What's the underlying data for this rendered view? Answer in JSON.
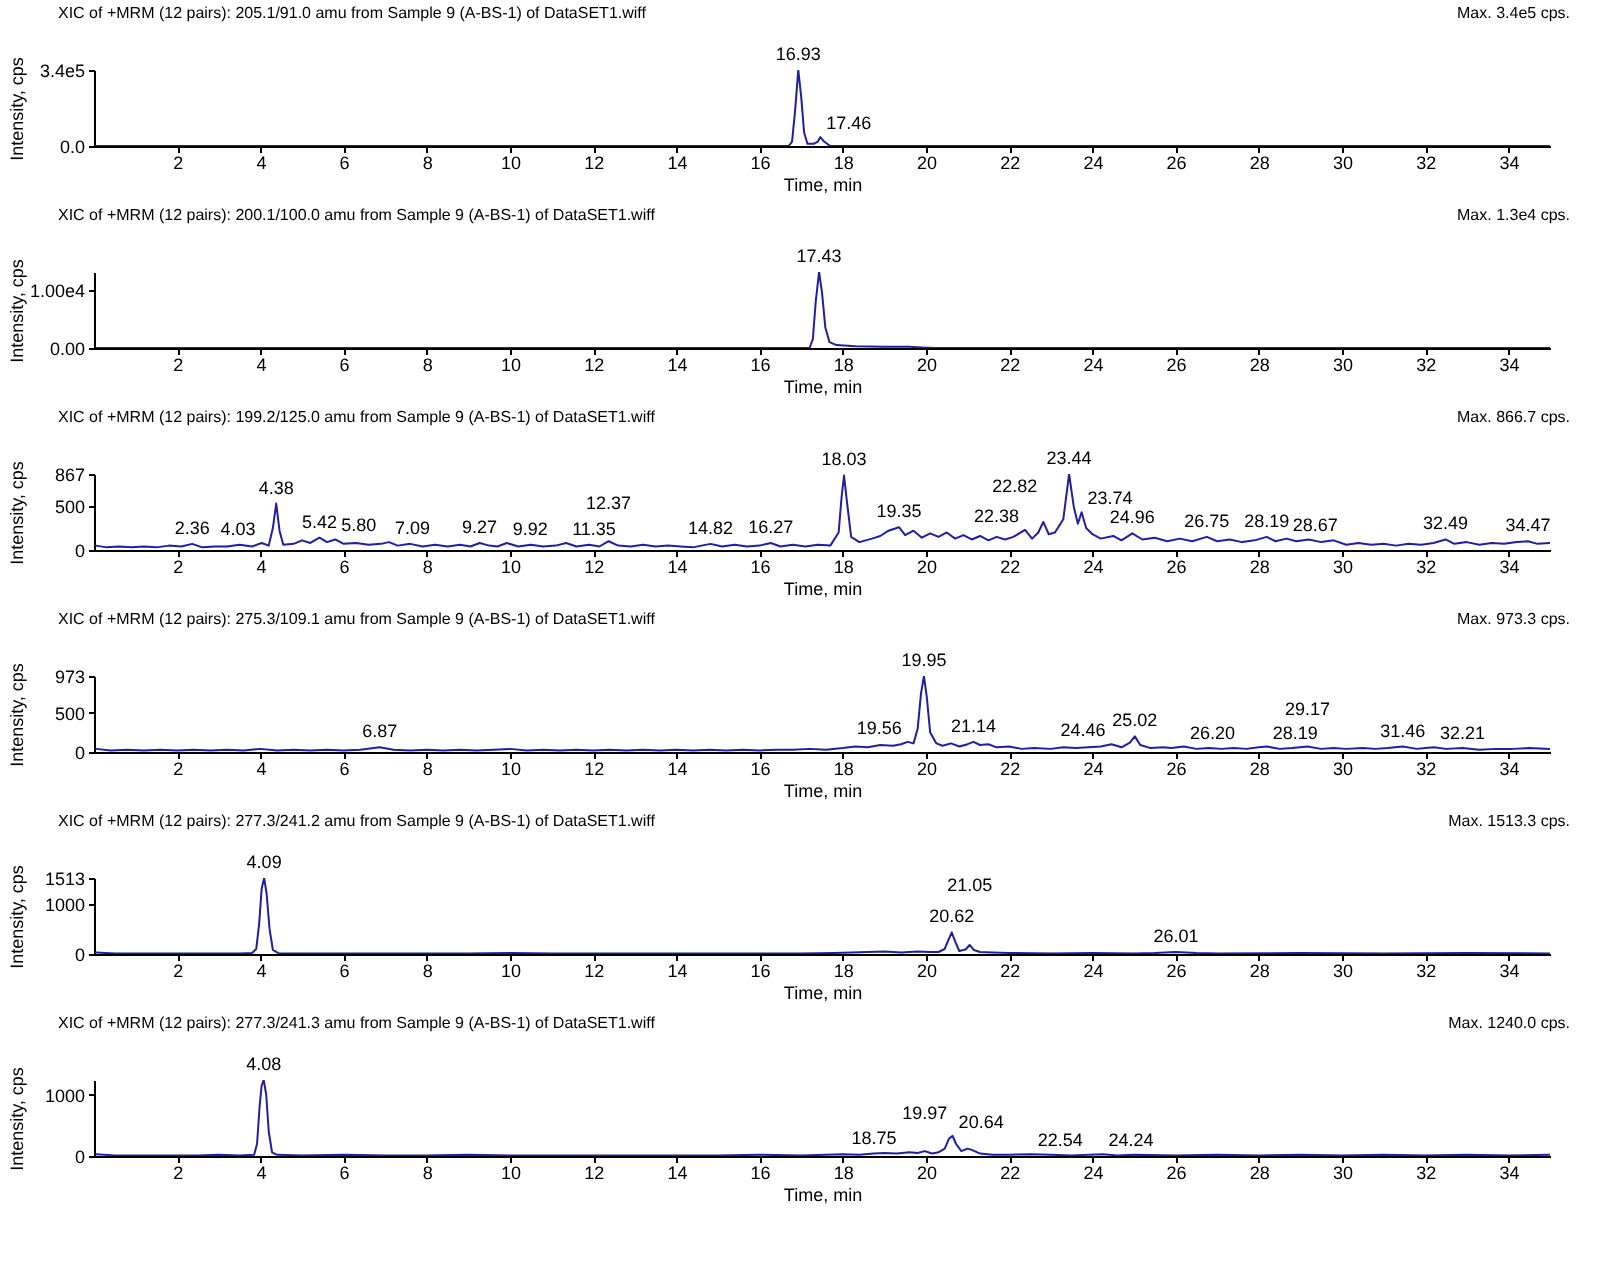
{
  "chart_data": [
    {
      "type": "line",
      "title": "XIC of +MRM (12 pairs): 205.1/91.0 amu from Sample 9 (A-BS-1) of DataSET1.wiff",
      "subtitle": "Max. 3.4e5 cps.",
      "xlabel": "Time, min",
      "ylabel": "Intensity, cps",
      "xlim": [
        0,
        35
      ],
      "xticks": [
        2,
        4,
        6,
        8,
        10,
        12,
        14,
        16,
        18,
        20,
        22,
        24,
        26,
        28,
        30,
        32,
        34
      ],
      "ylim": [
        0,
        340000
      ],
      "yticks": [
        {
          "value": 0,
          "label": "0.0"
        },
        {
          "value": 340000,
          "label": "3.4e5"
        }
      ],
      "grid": false,
      "series": [
        {
          "color": "#1f1f9f",
          "x": [
            0.05,
            16.7,
            16.78,
            16.85,
            16.93,
            17.0,
            17.07,
            17.15,
            17.3,
            17.4,
            17.46,
            17.55,
            17.7,
            18.0,
            35.0
          ],
          "values": [
            0,
            0,
            20000,
            150000,
            340000,
            220000,
            60000,
            10000,
            10000,
            20000,
            40000,
            20000,
            0,
            0,
            0
          ]
        }
      ],
      "annotations": [
        {
          "text": "16.93",
          "x": 16.93,
          "y": 340000
        },
        {
          "text": "17.46",
          "x": 17.46,
          "y": 40000
        }
      ]
    },
    {
      "type": "line",
      "title": "XIC of +MRM (12 pairs): 200.1/100.0 amu from Sample 9 (A-BS-1) of DataSET1.wiff",
      "subtitle": "Max. 1.3e4 cps.",
      "xlabel": "Time, min",
      "ylabel": "Intensity, cps",
      "xlim": [
        0,
        35
      ],
      "xticks": [
        2,
        4,
        6,
        8,
        10,
        12,
        14,
        16,
        18,
        20,
        22,
        24,
        26,
        28,
        30,
        32,
        34
      ],
      "ylim": [
        0,
        13000
      ],
      "yticks": [
        {
          "value": 0,
          "label": "0.00"
        },
        {
          "value": 10000,
          "label": "1.00e4"
        }
      ],
      "grid": false,
      "series": [
        {
          "color": "#1f1f9f",
          "x": [
            0.05,
            17.2,
            17.28,
            17.35,
            17.43,
            17.5,
            17.58,
            17.68,
            17.85,
            18.3,
            19.0,
            19.6,
            19.9,
            20.2,
            35.0
          ],
          "values": [
            0,
            0,
            1500,
            8000,
            13000,
            9500,
            3500,
            1000,
            500,
            300,
            200,
            200,
            100,
            0,
            0
          ]
        }
      ],
      "annotations": [
        {
          "text": "17.43",
          "x": 17.43,
          "y": 13000
        }
      ]
    },
    {
      "type": "line",
      "title": "XIC of +MRM (12 pairs): 199.2/125.0 amu from Sample 9 (A-BS-1) of DataSET1.wiff",
      "subtitle": "Max. 866.7 cps.",
      "xlabel": "Time, min",
      "ylabel": "Intensity, cps",
      "xlim": [
        0,
        35
      ],
      "xticks": [
        2,
        4,
        6,
        8,
        10,
        12,
        14,
        16,
        18,
        20,
        22,
        24,
        26,
        28,
        30,
        32,
        34
      ],
      "ylim": [
        0,
        867
      ],
      "yticks": [
        0,
        500,
        867
      ],
      "grid": false,
      "series": [
        {
          "color": "#1f1f9f",
          "x": [
            0.05,
            0.3,
            0.6,
            0.9,
            1.2,
            1.5,
            1.8,
            2.1,
            2.36,
            2.6,
            2.9,
            3.2,
            3.5,
            3.8,
            4.03,
            4.2,
            4.3,
            4.38,
            4.46,
            4.55,
            4.8,
            5.0,
            5.2,
            5.42,
            5.6,
            5.8,
            6.0,
            6.3,
            6.6,
            6.9,
            7.09,
            7.3,
            7.6,
            7.9,
            8.2,
            8.5,
            8.8,
            9.05,
            9.27,
            9.5,
            9.7,
            9.92,
            10.2,
            10.5,
            10.8,
            11.1,
            11.35,
            11.6,
            11.9,
            12.15,
            12.37,
            12.6,
            12.9,
            13.2,
            13.5,
            13.8,
            14.1,
            14.4,
            14.6,
            14.82,
            15.1,
            15.4,
            15.7,
            16.0,
            16.27,
            16.5,
            16.8,
            17.1,
            17.4,
            17.7,
            17.9,
            17.97,
            18.03,
            18.1,
            18.2,
            18.4,
            18.7,
            18.9,
            19.1,
            19.35,
            19.5,
            19.7,
            19.9,
            20.1,
            20.3,
            20.5,
            20.7,
            20.9,
            21.1,
            21.3,
            21.5,
            21.7,
            21.9,
            22.1,
            22.38,
            22.55,
            22.7,
            22.82,
            22.95,
            23.1,
            23.3,
            23.44,
            23.55,
            23.65,
            23.74,
            23.85,
            24.0,
            24.2,
            24.5,
            24.7,
            24.96,
            25.2,
            25.5,
            25.8,
            26.1,
            26.4,
            26.75,
            27.0,
            27.3,
            27.6,
            27.9,
            28.19,
            28.4,
            28.67,
            28.9,
            29.2,
            29.5,
            29.8,
            30.1,
            30.4,
            30.7,
            31.0,
            31.3,
            31.6,
            31.9,
            32.2,
            32.49,
            32.7,
            33.0,
            33.3,
            33.6,
            33.9,
            34.2,
            34.47,
            34.7,
            35.0
          ],
          "values": [
            50,
            30,
            40,
            30,
            40,
            30,
            50,
            40,
            70,
            30,
            40,
            40,
            60,
            40,
            80,
            50,
            250,
            530,
            220,
            60,
            70,
            110,
            80,
            140,
            90,
            120,
            70,
            80,
            60,
            70,
            90,
            50,
            70,
            40,
            60,
            40,
            60,
            40,
            80,
            50,
            40,
            80,
            40,
            60,
            40,
            50,
            80,
            40,
            60,
            40,
            100,
            50,
            40,
            60,
            40,
            50,
            40,
            30,
            50,
            70,
            40,
            60,
            40,
            50,
            80,
            40,
            60,
            40,
            60,
            50,
            200,
            600,
            850,
            550,
            150,
            90,
            130,
            160,
            220,
            260,
            170,
            220,
            140,
            190,
            150,
            200,
            130,
            170,
            120,
            160,
            110,
            150,
            120,
            150,
            230,
            130,
            200,
            320,
            180,
            200,
            350,
            866.7,
            500,
            300,
            430,
            250,
            180,
            130,
            160,
            110,
            190,
            120,
            140,
            100,
            130,
            100,
            150,
            100,
            120,
            90,
            110,
            150,
            100,
            130,
            100,
            120,
            90,
            110,
            60,
            80,
            60,
            70,
            50,
            70,
            60,
            80,
            120,
            70,
            90,
            60,
            80,
            70,
            90,
            100,
            70,
            80
          ]
        }
      ],
      "annotations": [
        {
          "text": "2.36",
          "x": 2.36,
          "y": 70
        },
        {
          "text": "4.03",
          "x": 4.03,
          "y": 80
        },
        {
          "text": "4.38",
          "x": 4.38,
          "y": 530
        },
        {
          "text": "5.42",
          "x": 5.42,
          "y": 140
        },
        {
          "text": "5.80",
          "x": 5.8,
          "y": 120
        },
        {
          "text": "7.09",
          "x": 7.09,
          "y": 90
        },
        {
          "text": "9.27",
          "x": 9.27,
          "y": 80
        },
        {
          "text": "9.92",
          "x": 9.92,
          "y": 80
        },
        {
          "text": "11.35",
          "x": 11.35,
          "y": 80
        },
        {
          "text": "12.37",
          "x": 12.37,
          "y": 100
        },
        {
          "text": "14.82",
          "x": 14.82,
          "y": 70
        },
        {
          "text": "16.27",
          "x": 16.27,
          "y": 80
        },
        {
          "text": "18.03",
          "x": 18.03,
          "y": 850
        },
        {
          "text": "19.35",
          "x": 19.35,
          "y": 260
        },
        {
          "text": "22.38",
          "x": 22.38,
          "y": 230
        },
        {
          "text": "22.82",
          "x": 22.82,
          "y": 320
        },
        {
          "text": "23.44",
          "x": 23.44,
          "y": 866.7
        },
        {
          "text": "23.74",
          "x": 23.74,
          "y": 430
        },
        {
          "text": "24.96",
          "x": 24.96,
          "y": 190
        },
        {
          "text": "26.75",
          "x": 26.75,
          "y": 150
        },
        {
          "text": "28.19",
          "x": 28.19,
          "y": 150
        },
        {
          "text": "28.67",
          "x": 28.67,
          "y": 130
        },
        {
          "text": "32.49",
          "x": 32.49,
          "y": 120
        },
        {
          "text": "34.47",
          "x": 34.47,
          "y": 100
        }
      ]
    },
    {
      "type": "line",
      "title": "XIC of +MRM (12 pairs): 275.3/109.1 amu from Sample 9 (A-BS-1) of DataSET1.wiff",
      "subtitle": "Max. 973.3 cps.",
      "xlabel": "Time, min",
      "ylabel": "Intensity, cps",
      "xlim": [
        0,
        35
      ],
      "xticks": [
        2,
        4,
        6,
        8,
        10,
        12,
        14,
        16,
        18,
        20,
        22,
        24,
        26,
        28,
        30,
        32,
        34
      ],
      "ylim": [
        0,
        973
      ],
      "yticks": [
        0,
        500,
        973
      ],
      "grid": false,
      "series": [
        {
          "color": "#1f1f9f",
          "x": [
            0.05,
            0.4,
            0.8,
            1.2,
            1.6,
            2.0,
            2.4,
            2.8,
            3.2,
            3.6,
            4.0,
            4.4,
            4.8,
            5.2,
            5.6,
            6.0,
            6.4,
            6.87,
            7.2,
            7.6,
            8.0,
            8.4,
            8.8,
            9.2,
            9.6,
            10.0,
            10.4,
            10.8,
            11.2,
            11.6,
            12.0,
            12.4,
            12.8,
            13.2,
            13.6,
            14.0,
            14.4,
            14.8,
            15.2,
            15.6,
            16.0,
            16.4,
            16.8,
            17.2,
            17.6,
            18.0,
            18.3,
            18.6,
            18.9,
            19.2,
            19.4,
            19.56,
            19.7,
            19.8,
            19.88,
            19.95,
            20.02,
            20.1,
            20.25,
            20.4,
            20.6,
            20.8,
            21.0,
            21.14,
            21.3,
            21.5,
            21.7,
            22.0,
            22.3,
            22.6,
            23.0,
            23.3,
            23.6,
            23.9,
            24.2,
            24.46,
            24.7,
            24.9,
            25.02,
            25.15,
            25.4,
            25.7,
            25.9,
            26.2,
            26.5,
            26.8,
            27.1,
            27.4,
            27.7,
            28.0,
            28.19,
            28.5,
            28.8,
            29.17,
            29.5,
            29.8,
            30.1,
            30.5,
            30.8,
            31.1,
            31.46,
            31.8,
            32.0,
            32.21,
            32.5,
            32.9,
            33.3,
            33.7,
            34.1,
            34.5,
            35.0
          ],
          "values": [
            40,
            20,
            30,
            20,
            30,
            20,
            30,
            20,
            30,
            20,
            40,
            20,
            30,
            20,
            30,
            20,
            30,
            60,
            30,
            20,
            30,
            20,
            30,
            20,
            30,
            40,
            20,
            30,
            20,
            30,
            20,
            30,
            20,
            30,
            20,
            30,
            20,
            30,
            20,
            30,
            20,
            30,
            30,
            40,
            30,
            50,
            70,
            60,
            90,
            80,
            100,
            130,
            110,
            300,
            750,
            973,
            700,
            250,
            110,
            80,
            110,
            70,
            100,
            130,
            90,
            100,
            60,
            70,
            40,
            50,
            40,
            60,
            50,
            60,
            70,
            100,
            60,
            120,
            200,
            90,
            50,
            60,
            50,
            70,
            40,
            50,
            40,
            50,
            40,
            60,
            70,
            40,
            50,
            70,
            40,
            50,
            40,
            50,
            40,
            50,
            70,
            40,
            50,
            60,
            40,
            50,
            30,
            40,
            40,
            50,
            40
          ]
        }
      ],
      "annotations": [
        {
          "text": "6.87",
          "x": 6.87,
          "y": 60
        },
        {
          "text": "19.56",
          "x": 19.56,
          "y": 130
        },
        {
          "text": "19.95",
          "x": 19.95,
          "y": 973
        },
        {
          "text": "21.14",
          "x": 21.14,
          "y": 130
        },
        {
          "text": "24.46",
          "x": 24.46,
          "y": 100
        },
        {
          "text": "25.02",
          "x": 25.02,
          "y": 200
        },
        {
          "text": "26.20",
          "x": 26.2,
          "y": 70
        },
        {
          "text": "28.19",
          "x": 28.19,
          "y": 70
        },
        {
          "text": "29.17",
          "x": 29.17,
          "y": 70
        },
        {
          "text": "31.46",
          "x": 31.46,
          "y": 70
        },
        {
          "text": "32.21",
          "x": 32.21,
          "y": 60
        }
      ]
    },
    {
      "type": "line",
      "title": "XIC of +MRM (12 pairs): 277.3/241.2 amu from Sample 9 (A-BS-1) of DataSET1.wiff",
      "subtitle": "Max. 1513.3 cps.",
      "xlabel": "Time, min",
      "ylabel": "Intensity, cps",
      "xlim": [
        0,
        35
      ],
      "xticks": [
        2,
        4,
        6,
        8,
        10,
        12,
        14,
        16,
        18,
        20,
        22,
        24,
        26,
        28,
        30,
        32,
        34
      ],
      "ylim": [
        0,
        1513
      ],
      "yticks": [
        0,
        1000,
        1513
      ],
      "grid": false,
      "series": [
        {
          "color": "#1f1f9f",
          "x": [
            0.05,
            0.5,
            1.5,
            2.5,
            3.5,
            3.8,
            3.9,
            3.97,
            4.03,
            4.09,
            4.15,
            4.22,
            4.3,
            4.45,
            5.5,
            7.0,
            9.0,
            10.0,
            11.0,
            13.0,
            15.0,
            16.0,
            17.0,
            17.8,
            18.2,
            18.6,
            19.0,
            19.4,
            19.8,
            20.1,
            20.3,
            20.45,
            20.55,
            20.62,
            20.7,
            20.8,
            20.95,
            21.05,
            21.15,
            21.3,
            21.6,
            22.0,
            23.0,
            24.0,
            25.0,
            25.5,
            26.01,
            26.5,
            27.0,
            29.0,
            31.0,
            33.0,
            35.0
          ],
          "values": [
            30,
            10,
            10,
            10,
            10,
            20,
            100,
            600,
            1300,
            1513,
            1200,
            500,
            80,
            10,
            10,
            10,
            10,
            20,
            10,
            10,
            10,
            10,
            10,
            20,
            30,
            40,
            50,
            30,
            50,
            40,
            40,
            100,
            300,
            430,
            250,
            60,
            90,
            180,
            80,
            40,
            30,
            20,
            10,
            20,
            10,
            20,
            40,
            20,
            10,
            20,
            10,
            20,
            10
          ]
        }
      ],
      "annotations": [
        {
          "text": "4.09",
          "x": 4.09,
          "y": 1513
        },
        {
          "text": "20.62",
          "x": 20.62,
          "y": 430
        },
        {
          "text": "21.05",
          "x": 21.05,
          "y": 180
        },
        {
          "text": "26.01",
          "x": 26.01,
          "y": 40
        }
      ]
    },
    {
      "type": "line",
      "title": "XIC of +MRM (12 pairs): 277.3/241.3 amu from Sample 9 (A-BS-1) of DataSET1.wiff",
      "subtitle": "Max. 1240.0 cps.",
      "xlabel": "Time, min",
      "ylabel": "Intensity, cps",
      "xlim": [
        0,
        35
      ],
      "xticks": [
        2,
        4,
        6,
        8,
        10,
        12,
        14,
        16,
        18,
        20,
        22,
        24,
        26,
        28,
        30,
        32,
        34
      ],
      "ylim": [
        0,
        1240
      ],
      "yticks": [
        0,
        1000
      ],
      "grid": false,
      "series": [
        {
          "color": "#1f1f9f",
          "x": [
            0.05,
            0.5,
            1.5,
            2.5,
            3.0,
            3.5,
            3.85,
            3.92,
            3.98,
            4.03,
            4.08,
            4.14,
            4.2,
            4.28,
            4.4,
            5.0,
            6.0,
            7.0,
            8.0,
            9.0,
            10.0,
            11.0,
            12.0,
            13.0,
            14.0,
            15.0,
            16.0,
            17.0,
            17.6,
            18.0,
            18.4,
            18.75,
            19.0,
            19.3,
            19.6,
            19.8,
            19.97,
            20.15,
            20.3,
            20.45,
            20.55,
            20.64,
            20.72,
            20.85,
            21.0,
            21.1,
            21.3,
            21.6,
            22.0,
            22.54,
            23.0,
            23.5,
            24.24,
            24.6,
            25.0,
            26.0,
            27.0,
            28.0,
            29.0,
            30.0,
            31.0,
            32.0,
            33.0,
            34.0,
            35.0
          ],
          "values": [
            30,
            10,
            10,
            10,
            20,
            10,
            20,
            200,
            800,
            1150,
            1240,
            1000,
            400,
            60,
            20,
            10,
            20,
            10,
            10,
            20,
            10,
            10,
            10,
            10,
            10,
            10,
            20,
            10,
            20,
            30,
            20,
            40,
            50,
            40,
            60,
            50,
            80,
            40,
            60,
            120,
            280,
            330,
            200,
            80,
            120,
            100,
            40,
            20,
            20,
            30,
            20,
            10,
            30,
            10,
            20,
            10,
            20,
            10,
            20,
            10,
            20,
            10,
            20,
            10,
            20
          ]
        }
      ],
      "annotations": [
        {
          "text": "4.08",
          "x": 4.08,
          "y": 1240
        },
        {
          "text": "18.75",
          "x": 18.75,
          "y": 40
        },
        {
          "text": "19.97",
          "x": 19.97,
          "y": 80
        },
        {
          "text": "20.64",
          "x": 20.64,
          "y": 330
        },
        {
          "text": "22.54",
          "x": 22.54,
          "y": 30
        },
        {
          "text": "24.24",
          "x": 24.24,
          "y": 30
        }
      ]
    }
  ]
}
